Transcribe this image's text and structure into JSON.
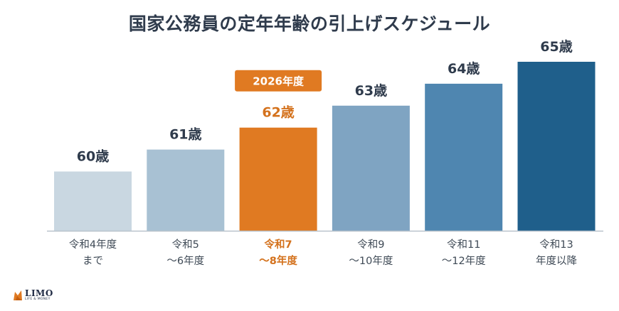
{
  "chart_data": {
    "type": "bar",
    "title": "国家公務員の定年年齢の引上げスケジュール",
    "categories": [
      [
        "令和4年度",
        "まで"
      ],
      [
        "令和5",
        "〜6年度"
      ],
      [
        "令和7",
        "〜8年度"
      ],
      [
        "令和9",
        "〜10年度"
      ],
      [
        "令和11",
        "〜12年度"
      ],
      [
        "令和13",
        "年度以降"
      ]
    ],
    "values": [
      60,
      61,
      62,
      63,
      64,
      65
    ],
    "value_labels": [
      "60歳",
      "61歳",
      "62歳",
      "63歳",
      "64歳",
      "65歳"
    ],
    "highlight": {
      "index": 2,
      "badge": "2026年度"
    },
    "ylim": [
      57.3,
      65
    ],
    "grid": false,
    "colors": {
      "bars": [
        "#c9d7e1",
        "#a8c1d3",
        "#e07a22",
        "#7fa4c2",
        "#4f86b0",
        "#1f5f8b"
      ],
      "highlight_text": "#d4721d",
      "label_text": "#2f3b4c",
      "baseline": "#b9c3cc"
    }
  },
  "logo": {
    "word": "LIMO",
    "tagline": "LIFE & MONEY"
  }
}
